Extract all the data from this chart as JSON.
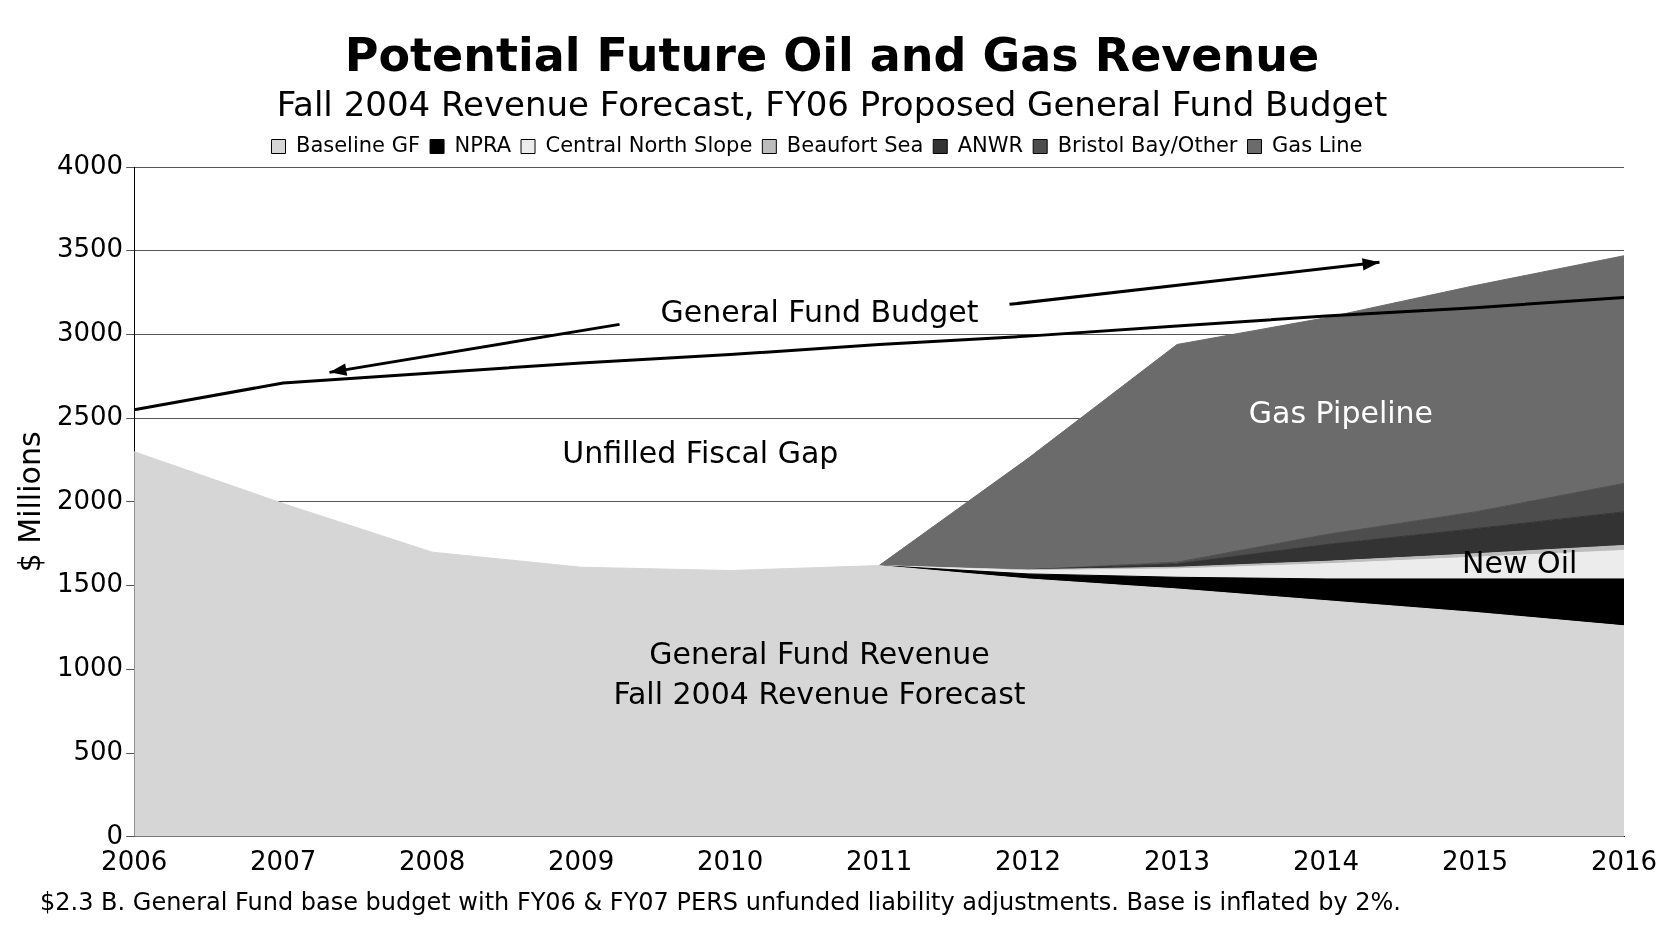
{
  "chart_data": {
    "type": "area",
    "title": "Potential Future Oil and Gas Revenue",
    "subtitle": "Fall 2004 Revenue Forecast, FY06 Proposed General Fund Budget",
    "ylabel": "$ Millions",
    "x": [
      2006,
      2007,
      2008,
      2009,
      2010,
      2011,
      2012,
      2013,
      2014,
      2015,
      2016
    ],
    "xlim": [
      2006,
      2016
    ],
    "xticks": [
      2006,
      2007,
      2008,
      2009,
      2010,
      2011,
      2012,
      2013,
      2014,
      2015,
      2016
    ],
    "ylim": [
      0,
      4000
    ],
    "yticks": [
      0,
      500,
      1000,
      1500,
      2000,
      2500,
      3000,
      3500,
      4000
    ],
    "stacked": true,
    "grid": "y",
    "legend": "top",
    "marker": "none",
    "line_style": "solid",
    "series": [
      {
        "name": "Baseline GF",
        "color": "#d6d6d6",
        "values": [
          2300,
          1990,
          1700,
          1610,
          1590,
          1620,
          1540,
          1480,
          1410,
          1340,
          1260
        ]
      },
      {
        "name": "NPRA",
        "color": "#000000",
        "values": [
          null,
          null,
          null,
          null,
          null,
          0,
          30,
          70,
          130,
          200,
          280
        ]
      },
      {
        "name": "Central North Slope",
        "color": "#ececec",
        "values": [
          null,
          null,
          null,
          null,
          null,
          0,
          20,
          50,
          90,
          130,
          170
        ]
      },
      {
        "name": "Beaufort Sea",
        "color": "#bcbcbc",
        "values": [
          null,
          null,
          null,
          null,
          null,
          0,
          5,
          10,
          15,
          20,
          30
        ]
      },
      {
        "name": "ANWR",
        "color": "#333333",
        "values": [
          null,
          null,
          null,
          null,
          null,
          0,
          0,
          20,
          100,
          150,
          200
        ]
      },
      {
        "name": "Bristol Bay/Other",
        "color": "#4d4d4d",
        "values": [
          null,
          null,
          null,
          null,
          null,
          0,
          0,
          10,
          60,
          100,
          170
        ]
      },
      {
        "name": "Gas Line",
        "color": "#6b6b6b",
        "values": [
          null,
          null,
          null,
          null,
          null,
          0,
          665,
          1300,
          1295,
          1352,
          1360
        ]
      },
      {
        "type": "line",
        "color": "#000000",
        "values": [
          2550,
          2710,
          2770,
          2830,
          2880,
          2940,
          2990,
          3050,
          3110,
          3160,
          3220
        ]
      }
    ],
    "annotations": [
      "General Fund Budget",
      "Unfilled Fiscal Gap",
      "Gas Pipeline",
      "New Oil",
      "General Fund Revenue",
      "Fall 2004 Revenue Forecast",
      "$2.3 B. General Fund base budget with FY06 & FY07 PERS unfunded liability adjustments.  Base is inflated by 2%."
    ]
  }
}
